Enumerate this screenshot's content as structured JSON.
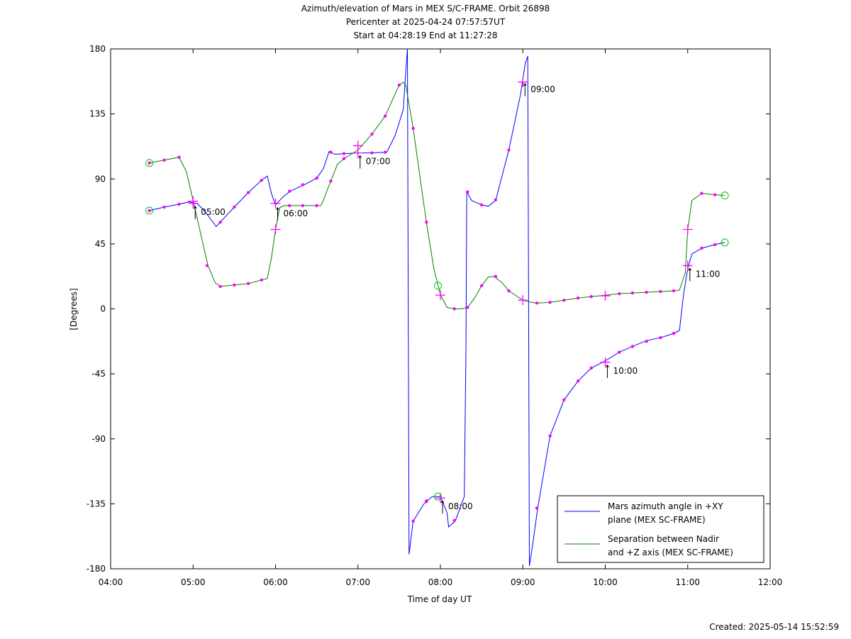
{
  "title_lines": [
    "Azimuth/elevation of Mars in MEX S/C-FRAME.  Orbit 26898",
    "Pericenter at 2025-04-24 07:57:57UT",
    "Start at 04:28:19 End at 11:27:28"
  ],
  "created": "Created: 2025-05-14 15:52:59",
  "chart_data": {
    "type": "line",
    "xlabel": "Time of day UT",
    "ylabel": "[Degrees]",
    "xlim": [
      4.0,
      12.0
    ],
    "ylim": [
      -180,
      180
    ],
    "x_ticks": [
      4,
      5,
      6,
      7,
      8,
      9,
      10,
      11,
      12
    ],
    "x_tick_labels": [
      "04:00",
      "05:00",
      "06:00",
      "07:00",
      "08:00",
      "09:00",
      "10:00",
      "11:00",
      "12:00"
    ],
    "y_ticks": [
      180,
      135,
      90,
      45,
      0,
      -45,
      -90,
      -135,
      -180
    ],
    "y_tick_labels": [
      "180",
      "135",
      "90",
      "45",
      "0",
      "-45",
      "-90",
      "-135",
      "-180"
    ],
    "grid": false,
    "legend_position": "bottom-right",
    "series": [
      {
        "name": "Mars azimuth angle in +XY plane (MEX SC-FRAME)",
        "legend_lines": [
          "Mars azimuth angle in +XY",
          "plane (MEX SC-FRAME)"
        ],
        "color": "#0000ff",
        "points": [
          [
            4.47,
            68
          ],
          [
            4.65,
            70.5
          ],
          [
            4.83,
            72.5
          ],
          [
            4.95,
            74
          ],
          [
            5.05,
            73
          ],
          [
            5.15,
            67
          ],
          [
            5.28,
            57
          ],
          [
            5.33,
            60
          ],
          [
            5.5,
            70.5
          ],
          [
            5.67,
            80.5
          ],
          [
            5.83,
            89
          ],
          [
            5.9,
            92
          ],
          [
            5.95,
            80
          ],
          [
            6.0,
            72
          ],
          [
            6.05,
            75
          ],
          [
            6.1,
            78
          ],
          [
            6.18,
            81.5
          ],
          [
            6.35,
            86
          ],
          [
            6.5,
            90.5
          ],
          [
            6.58,
            97
          ],
          [
            6.65,
            109
          ],
          [
            6.72,
            107
          ],
          [
            6.83,
            107.5
          ],
          [
            7.0,
            108
          ],
          [
            7.15,
            108
          ],
          [
            7.35,
            108.5
          ],
          [
            7.45,
            120
          ],
          [
            7.55,
            138
          ],
          [
            7.58,
            165
          ],
          [
            7.6,
            180
          ],
          [
            7.61,
            0
          ],
          [
            7.62,
            -170
          ],
          [
            7.67,
            -147
          ],
          [
            7.8,
            -135
          ],
          [
            7.9,
            -130
          ],
          [
            8.0,
            -130
          ],
          [
            8.08,
            -141
          ],
          [
            8.1,
            -151
          ],
          [
            8.18,
            -147
          ],
          [
            8.29,
            -130
          ],
          [
            8.31,
            -30
          ],
          [
            8.32,
            81
          ],
          [
            8.38,
            75
          ],
          [
            8.5,
            72
          ],
          [
            8.58,
            71
          ],
          [
            8.67,
            75
          ],
          [
            8.83,
            110
          ],
          [
            8.97,
            148
          ],
          [
            9.03,
            170
          ],
          [
            9.06,
            175
          ],
          [
            9.07,
            0
          ],
          [
            9.08,
            -178
          ],
          [
            9.12,
            -163
          ],
          [
            9.18,
            -138
          ],
          [
            9.33,
            -88
          ],
          [
            9.5,
            -63
          ],
          [
            9.67,
            -50
          ],
          [
            9.83,
            -41
          ],
          [
            10.0,
            -36
          ],
          [
            10.17,
            -30
          ],
          [
            10.33,
            -26
          ],
          [
            10.5,
            -22
          ],
          [
            10.67,
            -20
          ],
          [
            10.83,
            -17
          ],
          [
            10.9,
            -15
          ],
          [
            10.95,
            10
          ],
          [
            11.0,
            28
          ],
          [
            11.05,
            38
          ],
          [
            11.17,
            42
          ],
          [
            11.33,
            44.5
          ],
          [
            11.45,
            46
          ]
        ],
        "markers": [
          [
            4.47,
            68
          ],
          [
            4.65,
            70.5
          ],
          [
            4.83,
            72.5
          ],
          [
            5.33,
            60
          ],
          [
            5.5,
            70.5
          ],
          [
            5.67,
            80.5
          ],
          [
            5.83,
            89
          ],
          [
            6.17,
            81.5
          ],
          [
            6.33,
            86
          ],
          [
            6.5,
            90.5
          ],
          [
            6.67,
            108.5
          ],
          [
            6.83,
            107.5
          ],
          [
            7.17,
            108
          ],
          [
            7.33,
            108.5
          ],
          [
            7.67,
            -147
          ],
          [
            7.83,
            -133.5
          ],
          [
            7.83,
            -133
          ],
          [
            8.17,
            -146.5
          ],
          [
            8.33,
            81
          ],
          [
            8.5,
            72
          ],
          [
            8.67,
            75.5
          ],
          [
            8.83,
            110
          ],
          [
            9.17,
            -138
          ],
          [
            9.33,
            -88
          ],
          [
            9.5,
            -63
          ],
          [
            9.67,
            -50
          ],
          [
            9.83,
            -41
          ],
          [
            10.17,
            -30
          ],
          [
            10.33,
            -26
          ],
          [
            10.5,
            -22.5
          ],
          [
            10.67,
            -20
          ],
          [
            10.83,
            -17
          ],
          [
            11.17,
            42
          ],
          [
            11.33,
            44.5
          ]
        ]
      },
      {
        "name": "Separation between Nadir and +Z axis (MEX SC-FRAME)",
        "legend_lines": [
          "Separation between Nadir",
          "and +Z axis (MEX SC-FRAME)"
        ],
        "color": "#008000",
        "points": [
          [
            4.47,
            101
          ],
          [
            4.65,
            103
          ],
          [
            4.83,
            105
          ],
          [
            4.92,
            95
          ],
          [
            5.0,
            75
          ],
          [
            5.1,
            50
          ],
          [
            5.18,
            30
          ],
          [
            5.27,
            18
          ],
          [
            5.33,
            15.5
          ],
          [
            5.5,
            16.5
          ],
          [
            5.67,
            17.5
          ],
          [
            5.83,
            20
          ],
          [
            5.9,
            21
          ],
          [
            5.95,
            35
          ],
          [
            6.0,
            55
          ],
          [
            6.05,
            70
          ],
          [
            6.1,
            71.5
          ],
          [
            6.33,
            71.5
          ],
          [
            6.55,
            71.5
          ],
          [
            6.58,
            75
          ],
          [
            6.67,
            88.5
          ],
          [
            6.75,
            100
          ],
          [
            6.83,
            104
          ],
          [
            7.0,
            110
          ],
          [
            7.17,
            121
          ],
          [
            7.33,
            133.5
          ],
          [
            7.5,
            155
          ],
          [
            7.55,
            157
          ],
          [
            7.58,
            155
          ],
          [
            7.67,
            125
          ],
          [
            7.83,
            60
          ],
          [
            7.92,
            28
          ],
          [
            8.0,
            10
          ],
          [
            8.08,
            1
          ],
          [
            8.17,
            0
          ],
          [
            8.25,
            0
          ],
          [
            8.33,
            1
          ],
          [
            8.42,
            8
          ],
          [
            8.5,
            16
          ],
          [
            8.58,
            22
          ],
          [
            8.65,
            22.5
          ],
          [
            8.75,
            18
          ],
          [
            8.83,
            12.5
          ],
          [
            9.0,
            6
          ],
          [
            9.1,
            4.5
          ],
          [
            9.17,
            4
          ],
          [
            9.33,
            4.5
          ],
          [
            9.5,
            6
          ],
          [
            9.67,
            7.5
          ],
          [
            9.83,
            8.5
          ],
          [
            10.0,
            9.5
          ],
          [
            10.17,
            10.5
          ],
          [
            10.33,
            11
          ],
          [
            10.5,
            11.5
          ],
          [
            10.67,
            12
          ],
          [
            10.83,
            12.5
          ],
          [
            10.9,
            13
          ],
          [
            10.97,
            25
          ],
          [
            11.0,
            55
          ],
          [
            11.05,
            75
          ],
          [
            11.17,
            80
          ],
          [
            11.33,
            79
          ],
          [
            11.45,
            78.5
          ]
        ],
        "markers": [
          [
            4.47,
            101
          ],
          [
            4.65,
            103
          ],
          [
            4.83,
            105
          ],
          [
            5.17,
            30
          ],
          [
            5.33,
            15.5
          ],
          [
            5.5,
            16.5
          ],
          [
            5.67,
            17.5
          ],
          [
            5.83,
            20
          ],
          [
            6.17,
            71.5
          ],
          [
            6.33,
            71.5
          ],
          [
            6.5,
            71.5
          ],
          [
            6.67,
            88.5
          ],
          [
            6.83,
            104
          ],
          [
            7.17,
            121
          ],
          [
            7.33,
            133.5
          ],
          [
            7.5,
            155
          ],
          [
            7.67,
            125
          ],
          [
            7.83,
            60
          ],
          [
            8.17,
            0
          ],
          [
            8.33,
            1
          ],
          [
            8.5,
            16
          ],
          [
            8.67,
            22.5
          ],
          [
            8.83,
            12.5
          ],
          [
            9.17,
            4
          ],
          [
            9.33,
            4.5
          ],
          [
            9.5,
            6
          ],
          [
            9.67,
            7.5
          ],
          [
            9.83,
            8.5
          ],
          [
            10.17,
            10.5
          ],
          [
            10.33,
            11
          ],
          [
            10.5,
            11.5
          ],
          [
            10.67,
            12
          ],
          [
            10.83,
            12.5
          ],
          [
            11.17,
            80
          ],
          [
            11.33,
            79
          ]
        ]
      }
    ],
    "hour_crosses": [
      [
        5.0,
        73
      ],
      [
        6.0,
        73
      ],
      [
        7.0,
        113
      ],
      [
        8.0,
        -131
      ],
      [
        9.0,
        157
      ],
      [
        10.0,
        -37
      ],
      [
        11.0,
        30
      ],
      [
        5.0,
        74.5
      ],
      [
        6.0,
        55
      ],
      [
        7.0,
        108
      ],
      [
        8.0,
        9.5
      ],
      [
        9.0,
        6
      ],
      [
        10.0,
        9
      ],
      [
        11.0,
        55
      ]
    ],
    "start_end_circles": [
      [
        4.47,
        68
      ],
      [
        4.47,
        101
      ],
      [
        11.45,
        46
      ],
      [
        11.45,
        78.5
      ],
      [
        7.97,
        16
      ],
      [
        7.97,
        -130
      ]
    ],
    "hour_annotations": [
      {
        "x": 5.0,
        "y": 73,
        "label": "05:00"
      },
      {
        "x": 6.0,
        "y": 72,
        "label": "06:00"
      },
      {
        "x": 7.0,
        "y": 108,
        "label": "07:00"
      },
      {
        "x": 8.0,
        "y": -131,
        "label": "08:00"
      },
      {
        "x": 9.0,
        "y": 158,
        "label": "09:00"
      },
      {
        "x": 10.0,
        "y": -37,
        "label": "10:00"
      },
      {
        "x": 11.0,
        "y": 30,
        "label": "11:00"
      }
    ]
  }
}
